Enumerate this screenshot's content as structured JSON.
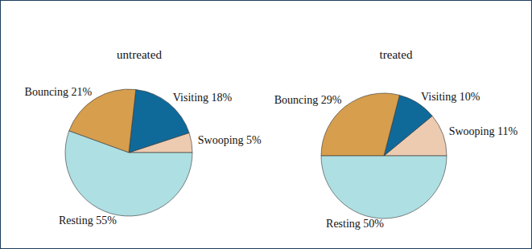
{
  "chart_data": [
    {
      "type": "pie",
      "title": "untreated",
      "categories": [
        "Swooping",
        "Visiting",
        "Bouncing",
        "Resting"
      ],
      "values": [
        5,
        18,
        21,
        55
      ],
      "value_labels": [
        "5%",
        "18%",
        "21%",
        "55%"
      ],
      "colors": [
        "#eccbb0",
        "#0f6a9a",
        "#d69e4d",
        "#aedfe2"
      ],
      "data_labels": true
    },
    {
      "type": "pie",
      "title": "treated",
      "categories": [
        "Swooping",
        "Visiting",
        "Bouncing",
        "Resting"
      ],
      "values": [
        11,
        10,
        29,
        50
      ],
      "value_labels": [
        "11%",
        "10%",
        "29%",
        "50%"
      ],
      "colors": [
        "#eccbb0",
        "#0f6a9a",
        "#d69e4d",
        "#aedfe2"
      ],
      "data_labels": true
    }
  ]
}
